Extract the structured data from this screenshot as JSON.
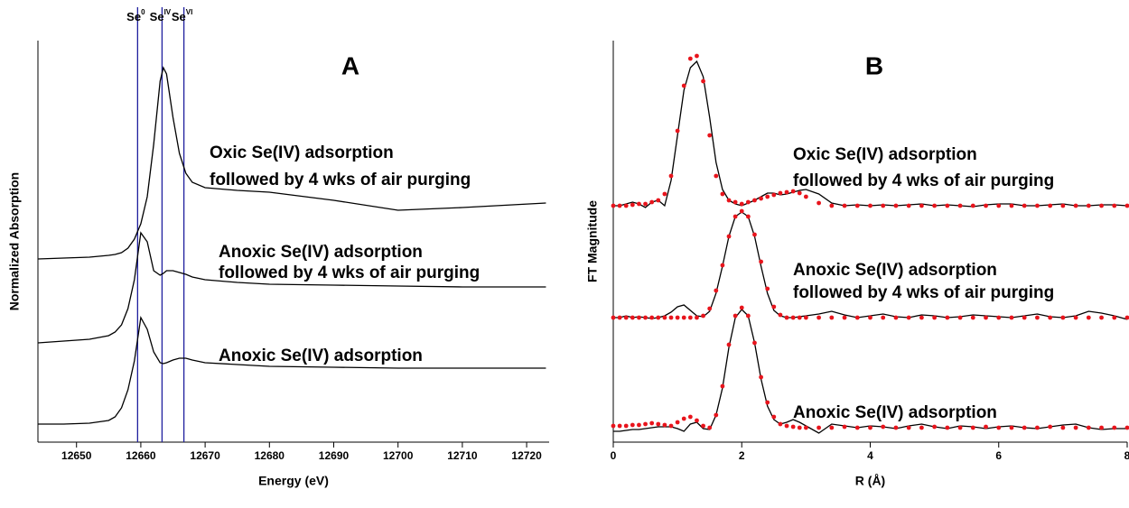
{
  "chart_data": [
    {
      "type": "line",
      "title": "A",
      "x_label": "Energy (eV)",
      "y_label": "Normalized Absorption",
      "x": [
        12644,
        12648,
        12652,
        12655,
        12656,
        12657,
        12658,
        12659,
        12660,
        12661,
        12662,
        12663,
        12663.5,
        12664,
        12665,
        12666,
        12667,
        12668,
        12670,
        12675,
        12680,
        12690,
        12700,
        12710,
        12723
      ],
      "xlim": [
        12644,
        12723.5
      ],
      "ylim": [
        0,
        445
      ],
      "xticks": [
        12650,
        12660,
        12670,
        12680,
        12690,
        12700,
        12710,
        12720
      ],
      "series": [
        {
          "color": "#000000",
          "values": [
            20,
            20,
            21,
            24,
            28,
            38,
            58,
            90,
            138,
            125,
            100,
            88,
            87,
            88,
            91,
            93,
            93,
            91,
            88,
            86,
            84,
            83,
            82,
            82,
            82
          ]
        },
        {
          "color": "#000000",
          "values": [
            110,
            112,
            114,
            118,
            122,
            130,
            148,
            180,
            232,
            222,
            190,
            185,
            187,
            190,
            190,
            188,
            186,
            183,
            180,
            177,
            175,
            174,
            173,
            172,
            172
          ]
        },
        {
          "color": "#000000",
          "values": [
            203,
            204,
            205,
            207,
            208,
            210,
            215,
            225,
            242,
            272,
            330,
            400,
            415,
            408,
            360,
            320,
            298,
            288,
            282,
            279,
            277,
            268,
            257,
            260,
            265
          ]
        }
      ],
      "reference_lines": [
        {
          "label": "Se",
          "sup": "0",
          "value": 12659.5
        },
        {
          "label": "Se",
          "sup": "IV",
          "value": 12663.3
        },
        {
          "label": "Se",
          "sup": "VI",
          "value": 12666.7
        }
      ],
      "reference_color": "#1f1f9e",
      "annotations": [
        "Oxic Se(IV) adsorption",
        "followed by 4 wks of air purging",
        "Anoxic Se(IV) adsorption",
        "followed by 4 wks of air purging",
        "Anoxic Se(IV) adsorption"
      ]
    },
    {
      "type": "line",
      "title": "B",
      "x_label": "R (Å)",
      "y_label": "FT Magnitude",
      "x": [
        0,
        0.1,
        0.2,
        0.3,
        0.4,
        0.5,
        0.6,
        0.7,
        0.8,
        0.9,
        1.0,
        1.1,
        1.2,
        1.3,
        1.4,
        1.5,
        1.6,
        1.7,
        1.8,
        1.9,
        2.0,
        2.1,
        2.2,
        2.3,
        2.4,
        2.5,
        2.6,
        2.7,
        2.8,
        2.9,
        3.0,
        3.2,
        3.4,
        3.6,
        3.8,
        4.0,
        4.2,
        4.4,
        4.6,
        4.8,
        5.0,
        5.2,
        5.4,
        5.6,
        5.8,
        6.0,
        6.2,
        6.4,
        6.6,
        6.8,
        7.0,
        7.2,
        7.4,
        7.6,
        7.8,
        8.0
      ],
      "xlim": [
        0,
        8
      ],
      "ylim": [
        0,
        445
      ],
      "xticks": [
        0,
        2,
        4,
        6,
        8
      ],
      "series": [
        {
          "color": "#000000",
          "marker": "line",
          "values": [
            262,
            262,
            264,
            266,
            264,
            260,
            266,
            268,
            262,
            290,
            340,
            390,
            415,
            422,
            405,
            360,
            310,
            280,
            268,
            264,
            262,
            265,
            268,
            272,
            276,
            276,
            274,
            275,
            277,
            279,
            280,
            275,
            265,
            262,
            263,
            262,
            263,
            262,
            263,
            264,
            262,
            263,
            262,
            261,
            263,
            264,
            264,
            262,
            262,
            263,
            264,
            262,
            262,
            263,
            263,
            262
          ]
        },
        {
          "color": "#e8141c",
          "marker": "dots",
          "values": [
            262,
            262,
            262,
            263,
            264,
            264,
            266,
            268,
            275,
            295,
            345,
            395,
            425,
            428,
            400,
            340,
            295,
            275,
            268,
            266,
            264,
            266,
            268,
            270,
            272,
            274,
            276,
            277,
            278,
            276,
            272,
            265,
            262,
            262,
            262,
            262,
            262,
            262,
            262,
            262,
            262,
            262,
            262,
            262,
            262,
            262,
            262,
            262,
            262,
            262,
            262,
            262,
            262,
            262,
            262,
            262
          ]
        },
        {
          "color": "#000000",
          "marker": "line",
          "values": [
            138,
            138,
            140,
            138,
            139,
            138,
            137,
            138,
            140,
            144,
            150,
            152,
            146,
            140,
            139,
            145,
            165,
            195,
            228,
            250,
            255,
            250,
            228,
            195,
            165,
            146,
            140,
            138,
            138,
            139,
            140,
            142,
            145,
            141,
            138,
            140,
            142,
            139,
            138,
            141,
            140,
            138,
            139,
            141,
            140,
            139,
            138,
            140,
            142,
            139,
            138,
            140,
            145,
            143,
            140,
            136
          ]
        },
        {
          "color": "#e8141c",
          "marker": "dots",
          "values": [
            138,
            138,
            138,
            138,
            138,
            138,
            138,
            138,
            138,
            138,
            138,
            138,
            138,
            138,
            140,
            148,
            168,
            196,
            228,
            250,
            256,
            250,
            230,
            200,
            170,
            150,
            141,
            138,
            138,
            138,
            138,
            138,
            138,
            138,
            138,
            138,
            138,
            138,
            138,
            138,
            138,
            138,
            138,
            138,
            138,
            138,
            138,
            138,
            138,
            138,
            138,
            138,
            138,
            138,
            138,
            138
          ]
        },
        {
          "color": "#000000",
          "marker": "line",
          "values": [
            12,
            12,
            13,
            14,
            14,
            15,
            16,
            17,
            17,
            17,
            15,
            12,
            20,
            22,
            15,
            14,
            30,
            60,
            105,
            138,
            147,
            140,
            110,
            70,
            40,
            25,
            20,
            22,
            25,
            22,
            18,
            10,
            20,
            18,
            16,
            18,
            17,
            15,
            18,
            20,
            17,
            15,
            18,
            17,
            15,
            17,
            18,
            16,
            15,
            17,
            19,
            20,
            16,
            14,
            15,
            15
          ]
        },
        {
          "color": "#e8141c",
          "marker": "dots",
          "values": [
            18,
            18,
            18,
            19,
            19,
            20,
            21,
            20,
            19,
            18,
            22,
            26,
            28,
            24,
            18,
            16,
            30,
            62,
            108,
            140,
            149,
            140,
            110,
            72,
            44,
            28,
            20,
            18,
            17,
            16,
            16,
            16,
            16,
            17,
            16,
            16,
            17,
            16,
            16,
            16,
            17,
            16,
            16,
            16,
            17,
            16,
            16,
            16,
            16,
            17,
            16,
            16,
            16,
            16,
            16,
            16
          ]
        }
      ],
      "annotations": [
        "Oxic Se(IV) adsorption",
        "followed by 4 wks of air purging",
        "Anoxic Se(IV) adsorption",
        "followed by 4 wks of air purging",
        "Anoxic Se(IV) adsorption"
      ]
    }
  ]
}
